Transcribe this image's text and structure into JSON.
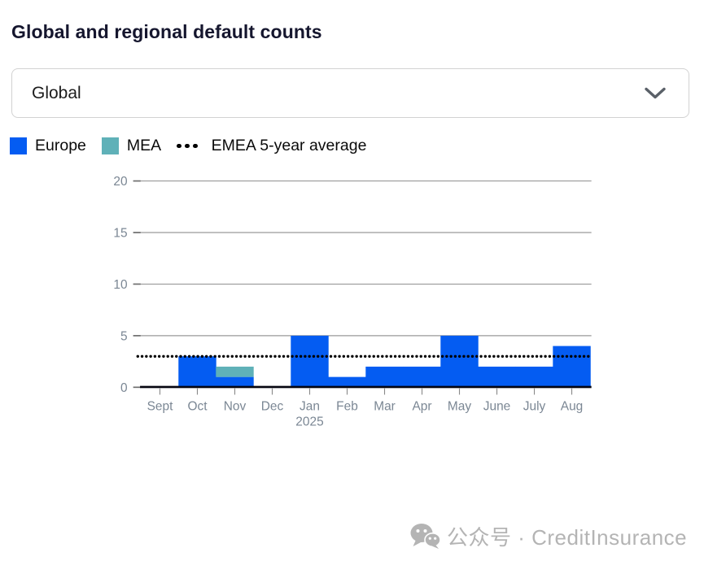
{
  "header": {
    "title": "Global and regional default counts"
  },
  "region_filter": {
    "selected_value": "Global",
    "chevron_icon": "chevron-down"
  },
  "legend": [
    {
      "label": "Europe",
      "color": "#045CF2",
      "marker": "swatch"
    },
    {
      "label": "MEA",
      "color": "#5FB1B8",
      "marker": "swatch"
    },
    {
      "label": "EMEA 5-year average",
      "color": "#000000",
      "marker": "dotted-line"
    }
  ],
  "chart_data": {
    "type": "bar",
    "stacked": true,
    "title": "Global and regional default counts",
    "xlabel": "",
    "ylabel": "",
    "categories": [
      "Sept",
      "Oct",
      "Nov",
      "Dec",
      "Jan",
      "Feb",
      "Mar",
      "Apr",
      "May",
      "June",
      "July",
      "Aug"
    ],
    "x_secondary_label": {
      "category": "Jan",
      "label": "2025"
    },
    "series": [
      {
        "name": "Europe",
        "color": "#045CF2",
        "values": [
          0,
          3,
          1,
          0,
          5,
          1,
          2,
          2,
          5,
          2,
          2,
          4
        ]
      },
      {
        "name": "MEA",
        "color": "#5FB1B8",
        "values": [
          0,
          0,
          1,
          0,
          0,
          0,
          0,
          0,
          0,
          0,
          0,
          0
        ]
      }
    ],
    "reference_line": {
      "name": "EMEA 5-year average",
      "value": 3,
      "style": "dotted",
      "color": "#000000"
    },
    "yticks": [
      0,
      5,
      10,
      15,
      20
    ],
    "ylim": [
      0,
      20
    ],
    "grid": "horizontal",
    "legend_position": "top"
  },
  "watermark": {
    "text": "公众号 · CreditInsurance"
  }
}
